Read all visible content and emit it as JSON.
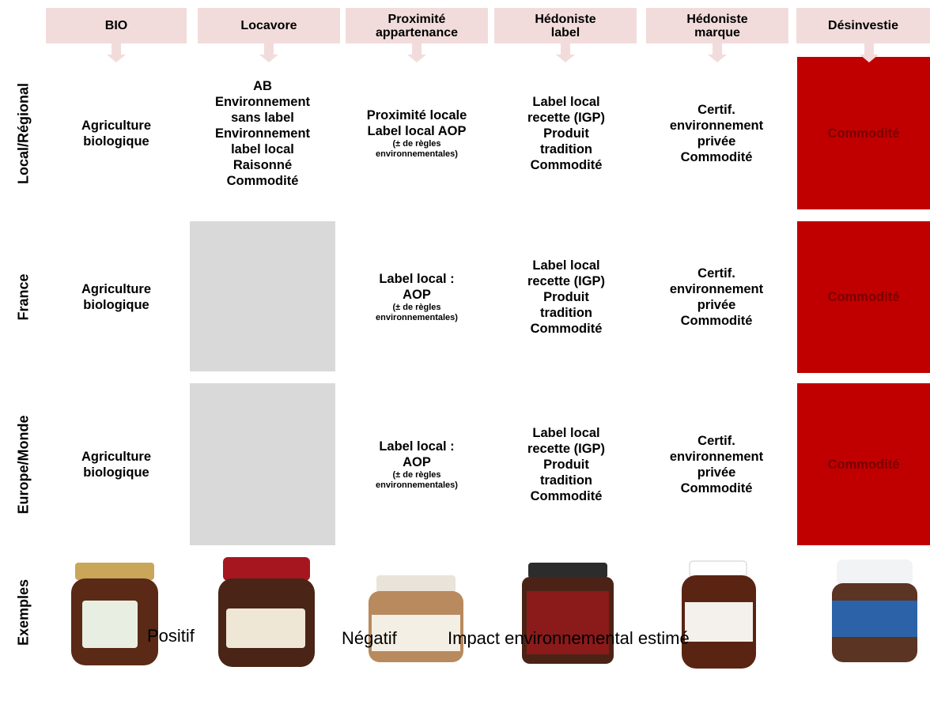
{
  "columns": [
    "BIO",
    [
      "Locavore"
    ],
    [
      "Proximité",
      "appartenance"
    ],
    [
      "Hédoniste",
      "label"
    ],
    [
      "Hédoniste",
      "marque"
    ],
    [
      "Désinvestie"
    ]
  ],
  "rows": [
    {
      "label": "Local/Régional",
      "cells": [
        {
          "lines": [
            "Agriculture",
            "biologique"
          ]
        },
        {
          "lines": [
            "AB",
            "Environnement",
            "sans label",
            "Environnement",
            "label local",
            "Raisonné",
            "Commodité"
          ]
        },
        {
          "lines": [
            "Proximité locale",
            "Label local AOP"
          ],
          "note": [
            "(± de règles",
            "environnementales)"
          ]
        },
        {
          "lines": [
            "Label local",
            "recette (IGP)",
            "Produit",
            "tradition",
            "Commodité"
          ]
        },
        {
          "lines": [
            "Certif.",
            "environnement",
            "privée",
            "Commodité"
          ]
        },
        {
          "lines": [
            "Commodité"
          ]
        }
      ]
    },
    {
      "label": "France",
      "cells": [
        {
          "lines": [
            "Agriculture",
            "biologique"
          ]
        },
        null,
        {
          "lines": [
            "Label local :",
            "AOP"
          ],
          "note": [
            "(± de règles",
            "environnementales)"
          ]
        },
        {
          "lines": [
            "Label local",
            "recette (IGP)",
            "Produit",
            "tradition",
            "Commodité"
          ]
        },
        {
          "lines": [
            "Certif.",
            "environnement",
            "privée",
            "Commodité"
          ]
        },
        {
          "lines": [
            "Commodité"
          ]
        }
      ]
    },
    {
      "label": "Europe/Monde",
      "cells": [
        {
          "lines": [
            "Agriculture",
            "biologique"
          ]
        },
        null,
        {
          "lines": [
            "Label local :",
            "AOP"
          ],
          "note": [
            "(± de règles",
            "environnementales)"
          ]
        },
        {
          "lines": [
            "Label local",
            "recette (IGP)",
            "Produit",
            "tradition",
            "Commodité"
          ]
        },
        {
          "lines": [
            "Certif.",
            "environnement",
            "privée",
            "Commodité"
          ]
        },
        {
          "lines": [
            "Commodité"
          ]
        }
      ]
    }
  ],
  "examples_label": "Exemples",
  "footer": {
    "positive": "Positif",
    "negative": "Négatif",
    "impact": "Impact environnemental estimé"
  }
}
